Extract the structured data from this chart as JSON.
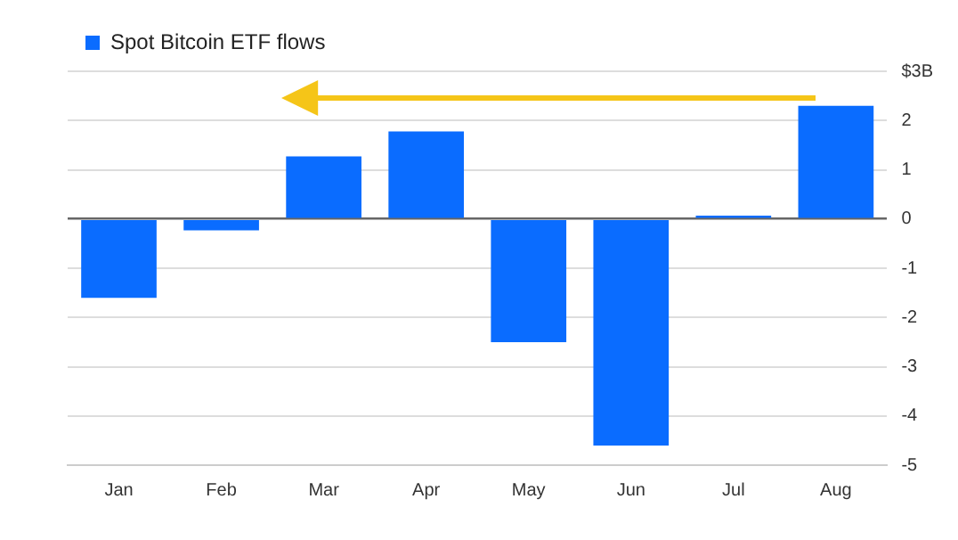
{
  "chart_data": {
    "type": "bar",
    "categories": [
      "Jan",
      "Feb",
      "Mar",
      "Apr",
      "May",
      "Jun",
      "Jul",
      "Aug"
    ],
    "series": [
      {
        "name": "Spot Bitcoin ETF flows",
        "color": "#0a6cff",
        "values": [
          -1.6,
          -0.23,
          1.27,
          1.78,
          -2.5,
          -4.6,
          0.07,
          2.3
        ]
      }
    ],
    "ylim": [
      -5,
      3
    ],
    "yticks": [
      {
        "value": 3,
        "label": "$3B"
      },
      2,
      1,
      0,
      -1,
      -2,
      -3,
      -4,
      -5
    ],
    "grid": "y",
    "legend": "top left"
  }
}
